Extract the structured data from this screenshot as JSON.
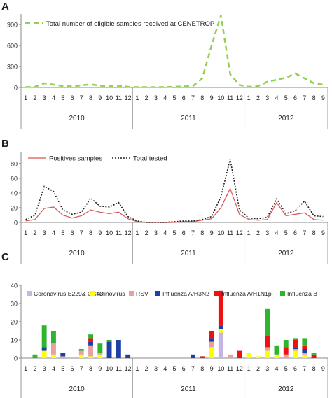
{
  "chart_data": [
    {
      "panel_label": "A",
      "type": "line",
      "months": [
        "1",
        "2",
        "3",
        "4",
        "5",
        "6",
        "7",
        "8",
        "9",
        "10",
        "11",
        "12",
        "1",
        "2",
        "3",
        "4",
        "5",
        "6",
        "7",
        "8",
        "9",
        "10",
        "11",
        "12",
        "1",
        "2",
        "3",
        "4",
        "5",
        "6",
        "7",
        "8",
        "9"
      ],
      "years": [
        "2010",
        "2011",
        "2012"
      ],
      "yticks": [
        "0",
        "300",
        "600",
        "900"
      ],
      "ylim": [
        0,
        1050
      ],
      "legend_position": "top",
      "series": [
        {
          "name": "Total number of eligible samples received at CENETROP",
          "color": "#92d050",
          "style": "dashed",
          "values": [
            5,
            10,
            60,
            40,
            20,
            15,
            30,
            45,
            25,
            20,
            25,
            10,
            5,
            5,
            5,
            5,
            10,
            15,
            20,
            130,
            600,
            1030,
            190,
            35,
            10,
            20,
            80,
            110,
            140,
            200,
            130,
            60,
            40
          ]
        }
      ]
    },
    {
      "panel_label": "B",
      "type": "line",
      "months": [
        "1",
        "2",
        "3",
        "4",
        "5",
        "6",
        "7",
        "8",
        "9",
        "10",
        "11",
        "12",
        "1",
        "2",
        "3",
        "4",
        "5",
        "6",
        "7",
        "8",
        "9",
        "10",
        "11",
        "12",
        "1",
        "2",
        "3",
        "4",
        "5",
        "6",
        "7",
        "8",
        "9"
      ],
      "years": [
        "2010",
        "2011",
        "2012"
      ],
      "yticks": [
        "0",
        "20",
        "40",
        "60",
        "80"
      ],
      "ylim": [
        0,
        95
      ],
      "legend_position": "top",
      "series": [
        {
          "name": "Positives samples",
          "color": "#d9534f",
          "style": "solid",
          "values": [
            2,
            4,
            19,
            21,
            10,
            6,
            9,
            17,
            14,
            12,
            14,
            5,
            1,
            0,
            0,
            0,
            0,
            1,
            1,
            3,
            5,
            20,
            46,
            11,
            4,
            3,
            4,
            27,
            9,
            11,
            13,
            4,
            3
          ]
        },
        {
          "name": "Total tested",
          "color": "#222222",
          "style": "dotted",
          "values": [
            4,
            10,
            49,
            42,
            17,
            11,
            14,
            33,
            22,
            21,
            27,
            8,
            2,
            0,
            0,
            0,
            1,
            2,
            2,
            4,
            8,
            35,
            86,
            17,
            6,
            5,
            7,
            32,
            12,
            16,
            29,
            9,
            8
          ]
        }
      ]
    },
    {
      "panel_label": "C",
      "type": "bar",
      "stacked": true,
      "categories": [
        "1",
        "2",
        "3",
        "4",
        "5",
        "6",
        "7",
        "8",
        "9",
        "10",
        "11",
        "12",
        "1",
        "2",
        "3",
        "4",
        "5",
        "6",
        "7",
        "8",
        "9",
        "10",
        "11",
        "12",
        "1",
        "2",
        "3",
        "4",
        "5",
        "6",
        "7",
        "8",
        "9"
      ],
      "years": [
        "2010",
        "2011",
        "2012"
      ],
      "yticks": [
        "0",
        "10",
        "20",
        "30",
        "40"
      ],
      "ylim": [
        0,
        40
      ],
      "legend_position": "top",
      "series": [
        {
          "name": "Coronavirus E229& OC43",
          "color": "#c6b4e3",
          "values": [
            0,
            0,
            0,
            0,
            0,
            0,
            0,
            0,
            0,
            0,
            0,
            0,
            0,
            0,
            0,
            0,
            0,
            0,
            0,
            0,
            0,
            14,
            0,
            0,
            0,
            0,
            0,
            0,
            0,
            0,
            0,
            0,
            0
          ]
        },
        {
          "name": "Rhinovirus",
          "color": "#ffff00",
          "values": [
            0,
            0,
            4,
            2,
            0,
            0,
            2,
            1,
            2,
            0,
            0,
            0,
            0,
            0,
            0,
            0,
            0,
            0,
            0,
            0,
            6,
            2,
            0,
            0,
            3,
            1,
            4,
            2,
            0,
            4,
            2,
            0,
            0
          ]
        },
        {
          "name": "RSV",
          "color": "#e8a0a0",
          "values": [
            0,
            0,
            0,
            6,
            1,
            0,
            2,
            6,
            1,
            0,
            0,
            0,
            0,
            0,
            0,
            0,
            0,
            0,
            0,
            0,
            3,
            0,
            2,
            0,
            0,
            0,
            2,
            0,
            2,
            1,
            1,
            0,
            0
          ]
        },
        {
          "name": "Influenza A/H3N2",
          "color": "#1f3fa8",
          "values": [
            0,
            0,
            2,
            0,
            2,
            0,
            0,
            2,
            0,
            9,
            10,
            2,
            0,
            0,
            0,
            0,
            0,
            0,
            2,
            0,
            2,
            2,
            0,
            0,
            0,
            0,
            0,
            0,
            0,
            1,
            2,
            0,
            0
          ]
        },
        {
          "name": "Influenza A/H1N1p",
          "color": "#ee1111",
          "values": [
            0,
            0,
            0,
            0,
            0,
            0,
            0,
            2,
            0,
            0,
            0,
            0,
            0,
            0,
            0,
            0,
            0,
            0,
            0,
            1,
            4,
            19,
            0,
            4,
            0,
            0,
            6,
            0,
            4,
            4,
            2,
            2,
            0
          ]
        },
        {
          "name": "Influenza B",
          "color": "#2db52d",
          "values": [
            0,
            2,
            12,
            7,
            0,
            0,
            1,
            2,
            5,
            1,
            0,
            0,
            0,
            0,
            0,
            0,
            0,
            0,
            0,
            0,
            0,
            0,
            0,
            0,
            0,
            0,
            15,
            5,
            4,
            1,
            4,
            1,
            0
          ]
        }
      ]
    }
  ]
}
